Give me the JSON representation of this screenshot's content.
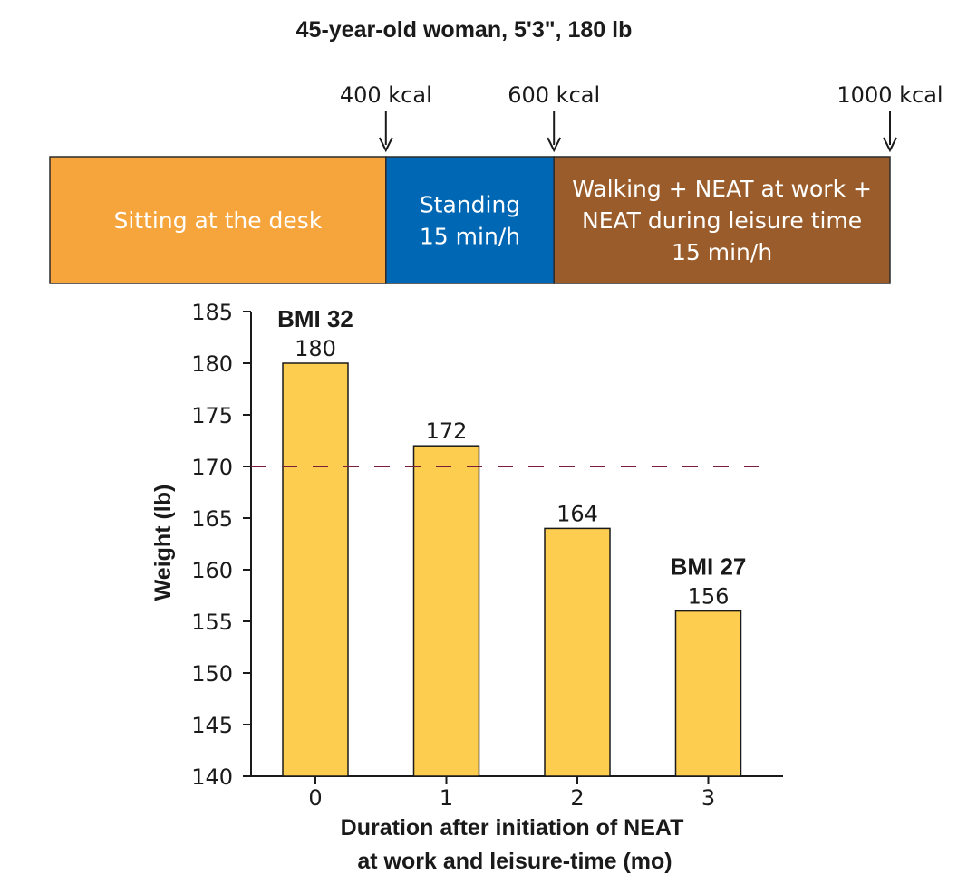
{
  "header": {
    "title": "45-year-old woman, 5'3\", 180 lb"
  },
  "activity_bar": {
    "markers": [
      {
        "label": "400 kcal",
        "kcal": 400
      },
      {
        "label": "600 kcal",
        "kcal": 600
      },
      {
        "label": "1000 kcal",
        "kcal": 1000
      }
    ],
    "segments": [
      {
        "lines": [
          "Sitting at the desk"
        ],
        "from_kcal": 0,
        "to_kcal": 400,
        "color": "#F6A43C"
      },
      {
        "lines": [
          "Standing",
          "15 min/h"
        ],
        "from_kcal": 400,
        "to_kcal": 600,
        "color": "#0067B5"
      },
      {
        "lines": [
          "Walking + NEAT at work +",
          "NEAT during leisure time",
          "15 min/h"
        ],
        "from_kcal": 600,
        "to_kcal": 1000,
        "color": "#9A5C2A"
      }
    ]
  },
  "chart_data": {
    "type": "bar",
    "categories": [
      "0",
      "1",
      "2",
      "3"
    ],
    "values": [
      180,
      172,
      164,
      156
    ],
    "value_labels": [
      "180",
      "172",
      "164",
      "156"
    ],
    "annotations": [
      {
        "category_index": 0,
        "text": "BMI 32"
      },
      {
        "category_index": 3,
        "text": "BMI 27"
      }
    ],
    "reference_line": {
      "value": 170,
      "style": "dashed",
      "color": "#7B1E3A"
    },
    "title": "",
    "xlabel": [
      "Duration after initiation of NEAT",
      "at work and leisure-time (mo)"
    ],
    "ylabel": "Weight (lb)",
    "ylim": [
      140,
      185
    ],
    "yticks": [
      140,
      145,
      150,
      155,
      160,
      165,
      170,
      175,
      180,
      185
    ],
    "bar_color": "#FDCD4F",
    "grid": false
  }
}
